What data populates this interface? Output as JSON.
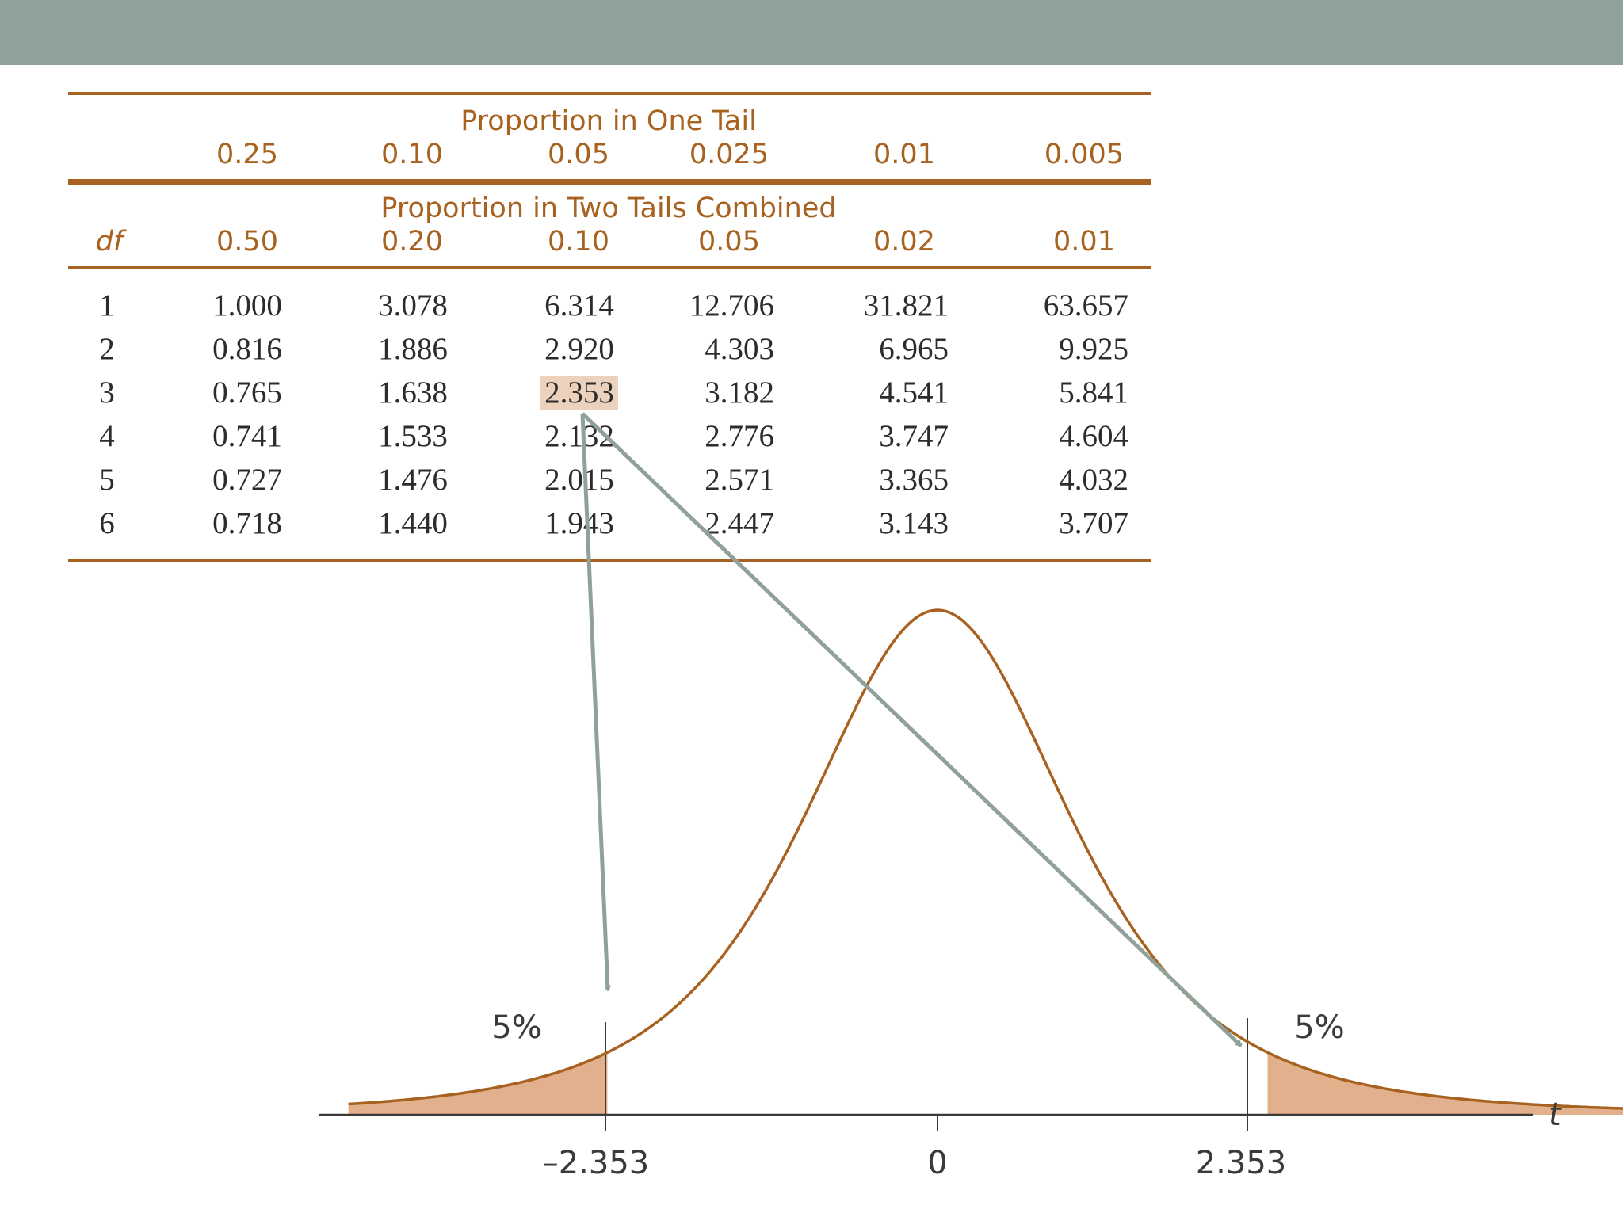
{
  "table": {
    "one_tail_title": "Proportion in One Tail",
    "one_tail_values": [
      "0.25",
      "0.10",
      "0.05",
      "0.025",
      "0.01",
      "0.005"
    ],
    "two_tail_title": "Proportion in Two Tails Combined",
    "two_tail_values": [
      "0.50",
      "0.20",
      "0.10",
      "0.05",
      "0.02",
      "0.01"
    ],
    "df_label": "df",
    "rows": [
      {
        "df": "1",
        "values": [
          "1.000",
          "3.078",
          "6.314",
          "12.706",
          "31.821",
          "63.657"
        ]
      },
      {
        "df": "2",
        "values": [
          "0.816",
          "1.886",
          "2.920",
          "4.303",
          "6.965",
          "9.925"
        ]
      },
      {
        "df": "3",
        "values": [
          "0.765",
          "1.638",
          "2.353",
          "3.182",
          "4.541",
          "5.841"
        ]
      },
      {
        "df": "4",
        "values": [
          "0.741",
          "1.533",
          "2.132",
          "2.776",
          "3.747",
          "4.604"
        ]
      },
      {
        "df": "5",
        "values": [
          "0.727",
          "1.476",
          "2.015",
          "2.571",
          "3.365",
          "4.032"
        ]
      },
      {
        "df": "6",
        "values": [
          "0.718",
          "1.440",
          "1.943",
          "2.447",
          "3.143",
          "3.707"
        ]
      }
    ],
    "highlighted": {
      "row": "3",
      "column": "0.05",
      "value": "2.353"
    }
  },
  "distribution": {
    "left_tail_label": "5%",
    "right_tail_label": "5%",
    "left_critical": "–2.353",
    "center": "0",
    "right_critical": "2.353",
    "axis_label": "t"
  },
  "colors": {
    "header_bar": "#90a19a",
    "accent": "#a8621f",
    "tail_fill": "#e3b08d",
    "highlight": "#ecd1bc",
    "arrow": "#90a19a"
  }
}
